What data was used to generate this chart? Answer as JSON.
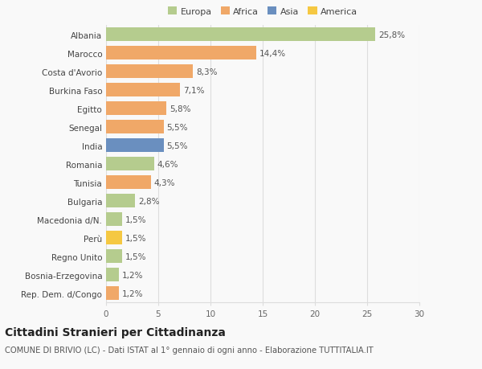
{
  "categories": [
    "Albania",
    "Marocco",
    "Costa d'Avorio",
    "Burkina Faso",
    "Egitto",
    "Senegal",
    "India",
    "Romania",
    "Tunisia",
    "Bulgaria",
    "Macedonia d/N.",
    "Perù",
    "Regno Unito",
    "Bosnia-Erzegovina",
    "Rep. Dem. d/Congo"
  ],
  "values": [
    25.8,
    14.4,
    8.3,
    7.1,
    5.8,
    5.5,
    5.5,
    4.6,
    4.3,
    2.8,
    1.5,
    1.5,
    1.5,
    1.2,
    1.2
  ],
  "labels": [
    "25,8%",
    "14,4%",
    "8,3%",
    "7,1%",
    "5,8%",
    "5,5%",
    "5,5%",
    "4,6%",
    "4,3%",
    "2,8%",
    "1,5%",
    "1,5%",
    "1,5%",
    "1,2%",
    "1,2%"
  ],
  "colors": [
    "#b5cc8e",
    "#f0a868",
    "#f0a868",
    "#f0a868",
    "#f0a868",
    "#f0a868",
    "#6a8fbf",
    "#b5cc8e",
    "#f0a868",
    "#b5cc8e",
    "#b5cc8e",
    "#f5c842",
    "#b5cc8e",
    "#b5cc8e",
    "#f0a868"
  ],
  "legend_labels": [
    "Europa",
    "Africa",
    "Asia",
    "America"
  ],
  "legend_colors": [
    "#b5cc8e",
    "#f0a868",
    "#6a8fbf",
    "#f5c842"
  ],
  "xlim": [
    0,
    30
  ],
  "xticks": [
    0,
    5,
    10,
    15,
    20,
    25,
    30
  ],
  "title": "Cittadini Stranieri per Cittadinanza",
  "subtitle": "COMUNE DI BRIVIO (LC) - Dati ISTAT al 1° gennaio di ogni anno - Elaborazione TUTTITALIA.IT",
  "bg_color": "#f9f9f9",
  "grid_color": "#dddddd",
  "bar_height": 0.72,
  "label_fontsize": 7.5,
  "tick_fontsize": 7.5,
  "title_fontsize": 10,
  "subtitle_fontsize": 7.2
}
